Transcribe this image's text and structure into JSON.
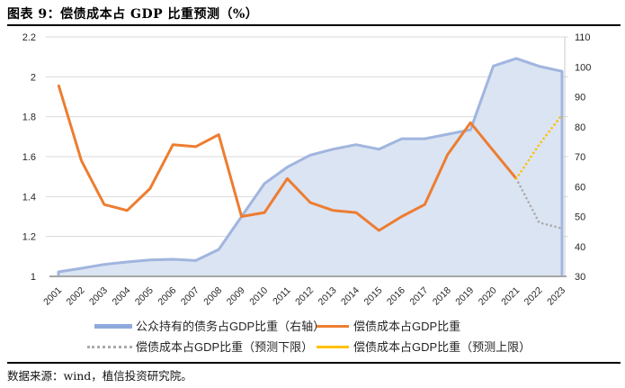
{
  "header": {
    "title": "图表 9：偿债成本占 GDP 比重预测（%）"
  },
  "footer": {
    "source": "数据来源：wind，植信投资研究院。"
  },
  "chart_data": {
    "type": "combo-area-line",
    "title": "偿债成本占GDP比重预测(%)",
    "grid": "horizontal",
    "legend_position": "bottom",
    "categories": [
      "2001",
      "2002",
      "2003",
      "2004",
      "2005",
      "2006",
      "2007",
      "2008",
      "2009",
      "2010",
      "2011",
      "2012",
      "2013",
      "2014",
      "2015",
      "2016",
      "2017",
      "2018",
      "2019",
      "2020",
      "2021",
      "2022",
      "2023"
    ],
    "left_axis": {
      "min": 1,
      "max": 2.2,
      "label_values": [
        "2.2",
        "2",
        "1.8",
        "1.6",
        "1.4",
        "1.2",
        "1"
      ]
    },
    "right_axis": {
      "min": 30,
      "max": 110,
      "label_values": [
        "110",
        "100",
        "90",
        "80",
        "70",
        "60",
        "50",
        "40",
        "30"
      ]
    },
    "series": [
      {
        "name": "公众持有的债务占GDP比重（右轴）",
        "type": "area",
        "axis": "right",
        "color": "#98AEDB",
        "fill": "#DBE4F3",
        "values": [
          31.5,
          32.7,
          34,
          34.8,
          35.5,
          35.7,
          35.3,
          39,
          50,
          61,
          66.5,
          70.5,
          72.5,
          74,
          72.5,
          76,
          76,
          77.5,
          79,
          100.3,
          102.8,
          100.2,
          98.5
        ]
      },
      {
        "name": "偿债成本占GDP比重",
        "type": "line",
        "axis": "left",
        "color": "#ED7D31",
        "values": [
          1.96,
          1.58,
          1.36,
          1.33,
          1.44,
          1.66,
          1.65,
          1.71,
          1.3,
          1.32,
          1.49,
          1.37,
          1.33,
          1.32,
          1.23,
          1.3,
          1.36,
          1.61,
          1.77,
          1.63,
          1.49,
          null,
          null
        ]
      },
      {
        "name": "偿债成本占GDP比重（预测下限）",
        "type": "dotted",
        "axis": "left",
        "color": "#ABABAB",
        "values": [
          null,
          null,
          null,
          null,
          null,
          null,
          null,
          null,
          null,
          null,
          null,
          null,
          null,
          null,
          null,
          null,
          null,
          null,
          null,
          null,
          1.49,
          1.27,
          1.24
        ]
      },
      {
        "name": "偿债成本占GDP比重（预测上限）",
        "type": "dotted",
        "axis": "left",
        "color": "#FFC000",
        "values": [
          null,
          null,
          null,
          null,
          null,
          null,
          null,
          null,
          null,
          null,
          null,
          null,
          null,
          null,
          null,
          null,
          null,
          null,
          null,
          null,
          1.49,
          1.66,
          1.81
        ]
      }
    ]
  }
}
